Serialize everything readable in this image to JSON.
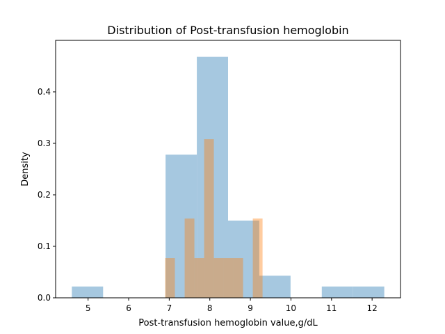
{
  "chart_data": {
    "type": "bar",
    "title": "Distribution of Post-transfusion hemoglobin",
    "xlabel": "Post-transfusion hemoglobin value,g/dL",
    "ylabel": "Density",
    "xlim": [
      4.2,
      12.7
    ],
    "ylim": [
      0,
      0.5
    ],
    "xticks": [
      "5",
      "6",
      "7",
      "8",
      "9",
      "10",
      "11",
      "12"
    ],
    "yticks": [
      "0.0",
      "0.1",
      "0.2",
      "0.3",
      "0.4"
    ],
    "grid": false,
    "legend": "none",
    "series": [
      {
        "color": "#a6c8e0",
        "opacity": 1.0,
        "bins": [
          {
            "x0": 4.6,
            "x1": 5.37,
            "density": 0.022
          },
          {
            "x0": 5.37,
            "x1": 6.14,
            "density": 0.0
          },
          {
            "x0": 6.14,
            "x1": 6.91,
            "density": 0.0
          },
          {
            "x0": 6.91,
            "x1": 7.68,
            "density": 0.278
          },
          {
            "x0": 7.68,
            "x1": 8.45,
            "density": 0.468
          },
          {
            "x0": 8.45,
            "x1": 9.22,
            "density": 0.15
          },
          {
            "x0": 9.22,
            "x1": 9.99,
            "density": 0.043
          },
          {
            "x0": 9.99,
            "x1": 10.76,
            "density": 0.0
          },
          {
            "x0": 10.76,
            "x1": 11.53,
            "density": 0.022
          },
          {
            "x0": 11.53,
            "x1": 12.3,
            "density": 0.022
          }
        ]
      },
      {
        "color": "#ff7f0e",
        "opacity": 0.4,
        "bins": [
          {
            "x0": 6.9,
            "x1": 7.14,
            "density": 0.077
          },
          {
            "x0": 7.14,
            "x1": 7.38,
            "density": 0.0
          },
          {
            "x0": 7.38,
            "x1": 7.62,
            "density": 0.154
          },
          {
            "x0": 7.62,
            "x1": 7.86,
            "density": 0.077
          },
          {
            "x0": 7.86,
            "x1": 8.1,
            "density": 0.308
          },
          {
            "x0": 8.1,
            "x1": 8.34,
            "density": 0.077
          },
          {
            "x0": 8.34,
            "x1": 8.58,
            "density": 0.077
          },
          {
            "x0": 8.58,
            "x1": 8.82,
            "density": 0.077
          },
          {
            "x0": 8.82,
            "x1": 9.06,
            "density": 0.0
          },
          {
            "x0": 9.06,
            "x1": 9.3,
            "density": 0.154
          }
        ]
      }
    ]
  }
}
